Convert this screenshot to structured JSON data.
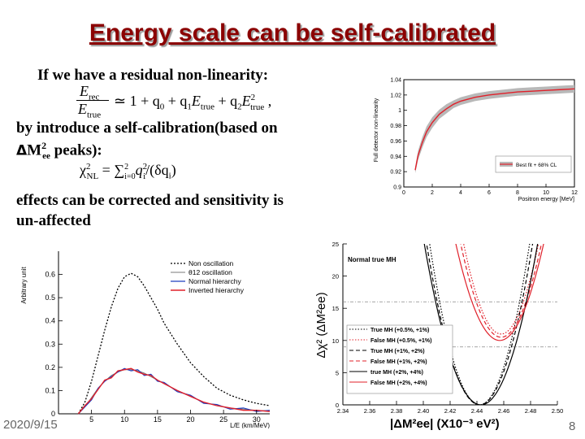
{
  "slide": {
    "title": "Energy scale can be self-calibrated",
    "line1": "If we have a residual non-linearity:",
    "line2a": "by introduce a self-calibration(based on",
    "line2b_delta": "Δ",
    "line2b_m": "M",
    "line2b_sup": "2",
    "line2b_sub": "ee",
    "line2b_rest": " peaks):",
    "line3a": "effects can be corrected and sensitivity is",
    "line3b": "un-affected",
    "date": "2020/9/15",
    "page_number": "8"
  },
  "formulas": {
    "f1_num": "E",
    "f1_num_sub": "rec",
    "f1_den": "E",
    "f1_den_sub": "true",
    "f1_rhs": "≃ 1 + q",
    "f1_q0": "0",
    "f1_plus1": " + q",
    "f1_q1": "1",
    "f1_E1": "E",
    "f1_E1sub": "true",
    "f1_plus2": " + q",
    "f1_q2": "2",
    "f1_E2": "E",
    "f1_E2sup": "2",
    "f1_E2sub": "true",
    "f1_comma": " ,",
    "f2_chi": "χ",
    "f2_sup": "2",
    "f2_sub": "NL",
    "f2_eq": " = ",
    "f2_sum": "∑",
    "f2_sum_top": "2",
    "f2_sum_bot": "i=0",
    "f2_q": "q",
    "f2_qsup": "2",
    "f2_qsub": "i",
    "f2_div": "/(δq",
    "f2_dsub": "i",
    "f2_close": ")"
  },
  "colors": {
    "title": "#8b0000",
    "red": "#e0202a",
    "band": "#b8b8b8"
  },
  "chart_data": [
    {
      "type": "line",
      "title": "",
      "xlabel": "Positron energy [MeV]",
      "ylabel": "Full detector non-linearity",
      "xlim": [
        0,
        12
      ],
      "ylim": [
        0.9,
        1.04
      ],
      "xticks": [
        "0",
        "2",
        "4",
        "6",
        "8",
        "10",
        "12"
      ],
      "yticks": [
        "0.9",
        "0.92",
        "0.94",
        "0.96",
        "0.98",
        "1",
        "1.02",
        "1.04"
      ],
      "legend": "Best fit + 68% CL",
      "x": [
        0.8,
        1.0,
        1.3,
        1.6,
        2.0,
        2.5,
        3.0,
        3.5,
        4.0,
        5.0,
        6.0,
        7.0,
        8.0,
        9.0,
        10.0,
        11.0,
        12.0
      ],
      "y": [
        0.922,
        0.941,
        0.958,
        0.972,
        0.984,
        0.995,
        1.002,
        1.008,
        1.012,
        1.017,
        1.02,
        1.022,
        1.024,
        1.025,
        1.026,
        1.027,
        1.028
      ],
      "band": [
        0.004,
        0.006,
        0.007,
        0.007,
        0.007,
        0.006,
        0.006,
        0.005,
        0.005,
        0.005,
        0.005,
        0.005,
        0.005,
        0.005,
        0.005,
        0.005,
        0.005
      ]
    },
    {
      "type": "line",
      "title": "",
      "xlabel": "L/E (km/MeV)",
      "ylabel": "Arbitrary unit",
      "xlim": [
        0,
        32
      ],
      "ylim": [
        0,
        0.7
      ],
      "xticks": [
        "5",
        "10",
        "15",
        "20",
        "25",
        "30"
      ],
      "yticks": [
        "0",
        "0.1",
        "0.2",
        "0.3",
        "0.4",
        "0.5",
        "0.6"
      ],
      "series": [
        {
          "name": "Non oscillation",
          "x": [
            3,
            4,
            5,
            6,
            7,
            8,
            9,
            10,
            11,
            12,
            13,
            14,
            15,
            16,
            18,
            20,
            22,
            24,
            26,
            28,
            30,
            32
          ],
          "y": [
            0.0,
            0.05,
            0.14,
            0.25,
            0.36,
            0.46,
            0.54,
            0.59,
            0.605,
            0.59,
            0.55,
            0.5,
            0.45,
            0.39,
            0.3,
            0.22,
            0.16,
            0.11,
            0.08,
            0.06,
            0.045,
            0.035
          ]
        },
        {
          "name": "θ12 oscillation",
          "x": [
            3,
            4,
            5,
            6,
            7,
            8,
            9,
            10,
            11,
            12,
            13,
            14,
            15,
            16,
            18,
            20,
            22,
            24,
            26,
            28,
            30,
            32
          ],
          "y": [
            0.0,
            0.03,
            0.07,
            0.11,
            0.14,
            0.165,
            0.18,
            0.19,
            0.19,
            0.185,
            0.175,
            0.16,
            0.145,
            0.13,
            0.1,
            0.075,
            0.05,
            0.035,
            0.025,
            0.02,
            0.015,
            0.012
          ]
        },
        {
          "name": "Normal hierarchy",
          "x": [
            3,
            4,
            5,
            6,
            7,
            8,
            9,
            10,
            11,
            12,
            13,
            14,
            15,
            16,
            18,
            20,
            22,
            24,
            26,
            28,
            30,
            32
          ],
          "y": [
            0.0,
            0.03,
            0.06,
            0.11,
            0.14,
            0.16,
            0.18,
            0.195,
            0.185,
            0.19,
            0.165,
            0.17,
            0.14,
            0.135,
            0.095,
            0.08,
            0.045,
            0.04,
            0.02,
            0.025,
            0.01,
            0.015
          ]
        },
        {
          "name": "Inverted hierarchy",
          "x": [
            3,
            4,
            5,
            6,
            7,
            8,
            9,
            10,
            11,
            12,
            13,
            14,
            15,
            16,
            18,
            20,
            22,
            24,
            26,
            28,
            30,
            32
          ],
          "y": [
            0.0,
            0.035,
            0.065,
            0.105,
            0.145,
            0.155,
            0.185,
            0.19,
            0.195,
            0.18,
            0.17,
            0.165,
            0.145,
            0.13,
            0.1,
            0.075,
            0.05,
            0.035,
            0.025,
            0.015,
            0.015,
            0.01
          ]
        }
      ]
    },
    {
      "type": "line",
      "title": "Normal true MH",
      "xlabel": "|ΔM²ee| (X10⁻³ eV²)",
      "ylabel": "Δχ² (ΔM²ee)",
      "xlim": [
        2.34,
        2.5
      ],
      "ylim": [
        0,
        25
      ],
      "xticks": [
        "2.34",
        "2.36",
        "2.38",
        "2.40",
        "2.42",
        "2.44",
        "2.46",
        "2.48",
        "2.50"
      ],
      "yticks": [
        "0",
        "5",
        "10",
        "15",
        "20",
        "25"
      ],
      "hlines": [
        16,
        9
      ],
      "series": [
        {
          "name": "True MH (+0.5%, +1%)",
          "style": "dotted",
          "color": "black",
          "center": 2.442,
          "min": 0,
          "curv": 18000
        },
        {
          "name": "False MH (+0.5%, +1%)",
          "style": "dotted",
          "color": "red",
          "center": 2.458,
          "min": 11,
          "curv": 18000
        },
        {
          "name": "True MH (+1%, +2%)",
          "style": "dashed",
          "color": "black",
          "center": 2.442,
          "min": 0,
          "curv": 16000
        },
        {
          "name": "False MH (+1%, +2%)",
          "style": "dashed",
          "color": "red",
          "center": 2.458,
          "min": 10.5,
          "curv": 16000
        },
        {
          "name": "true MH (+2%, +4%)",
          "style": "solid",
          "color": "black",
          "center": 2.443,
          "min": 0,
          "curv": 14000
        },
        {
          "name": "False MH (+2%, +4%)",
          "style": "solid",
          "color": "red",
          "center": 2.457,
          "min": 10,
          "curv": 14000
        }
      ]
    }
  ]
}
